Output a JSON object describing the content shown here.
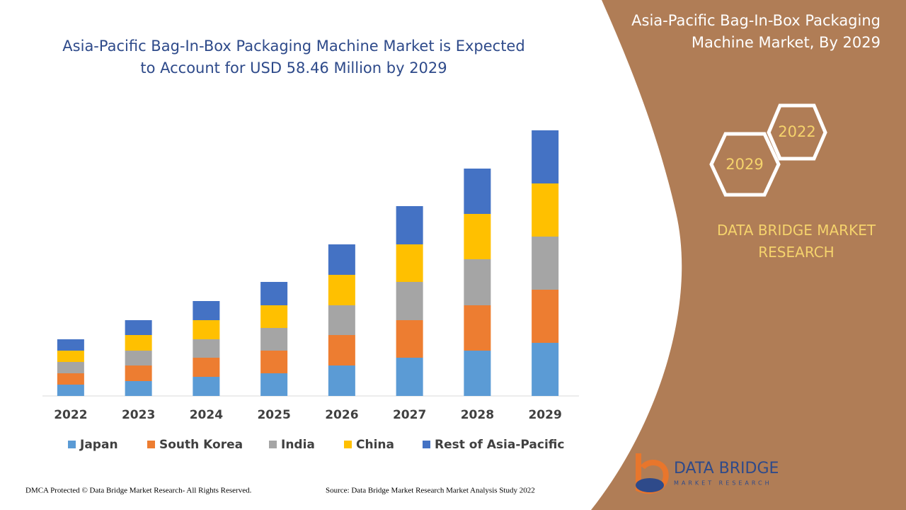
{
  "chart_data": {
    "type": "bar",
    "stacked": true,
    "title": "Asia-Pacific Bag-In-Box Packaging Machine Market is Expected to Account for USD 58.46 Million by 2029",
    "categories": [
      "2022",
      "2023",
      "2024",
      "2025",
      "2026",
      "2027",
      "2028",
      "2029"
    ],
    "series": [
      {
        "name": "Japan",
        "color": "#5b9bd5",
        "values": [
          16,
          21,
          27,
          32,
          43,
          54,
          64,
          75
        ]
      },
      {
        "name": "South Korea",
        "color": "#ed7d31",
        "values": [
          16,
          22,
          27,
          32,
          43,
          53,
          64,
          75
        ]
      },
      {
        "name": "India",
        "color": "#a5a5a5",
        "values": [
          16,
          21,
          26,
          32,
          42,
          54,
          65,
          75
        ]
      },
      {
        "name": "China",
        "color": "#ffc000",
        "values": [
          16,
          22,
          27,
          32,
          43,
          53,
          64,
          75
        ]
      },
      {
        "name": "Rest of Asia-Pacific",
        "color": "#4472c4",
        "values": [
          16,
          21,
          27,
          33,
          43,
          54,
          64,
          75
        ]
      }
    ],
    "ylim": [
      0,
      400
    ],
    "legend": "bottom"
  },
  "panel": {
    "title": "Asia-Pacific Bag-In-Box Packaging Machine Market, By 2029",
    "hex_start": "2022",
    "hex_end": "2029",
    "brand": "DATA BRIDGE MARKET RESEARCH"
  },
  "logo": {
    "name": "DATA BRIDGE",
    "tagline": "MARKET RESEARCH"
  },
  "footer": {
    "left": "DMCA Protected © Data Bridge Market Research- All Rights Reserved.",
    "right": "Source: Data Bridge Market Research Market Analysis Study 2022"
  }
}
